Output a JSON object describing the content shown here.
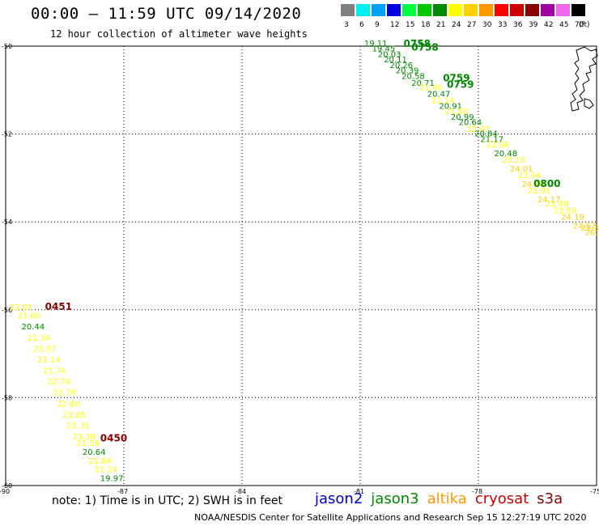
{
  "header": {
    "title": "00:00 – 11:59 UTC 09/14/2020",
    "subtitle": "12 hour collection of altimeter wave heights"
  },
  "scale": {
    "unit": "(ft)",
    "bins": [
      {
        "label": "3",
        "color": "#808080"
      },
      {
        "label": "6",
        "color": "#00f0f0"
      },
      {
        "label": "9",
        "color": "#00a0ff"
      },
      {
        "label": "12",
        "color": "#0000e0"
      },
      {
        "label": "15",
        "color": "#00ff40"
      },
      {
        "label": "18",
        "color": "#00c800"
      },
      {
        "label": "21",
        "color": "#008800"
      },
      {
        "label": "24",
        "color": "#ffff00"
      },
      {
        "label": "27",
        "color": "#ffd000"
      },
      {
        "label": "30",
        "color": "#ff9900"
      },
      {
        "label": "33",
        "color": "#ff0000"
      },
      {
        "label": "36",
        "color": "#cc0000"
      },
      {
        "label": "39",
        "color": "#880000"
      },
      {
        "label": "42",
        "color": "#a000a0"
      },
      {
        "label": "45",
        "color": "#ee66ee"
      },
      {
        "label": "70",
        "color": "#000000"
      }
    ]
  },
  "axes": {
    "lat_labels": [
      "-50",
      "-52",
      "-54",
      "-56",
      "-58",
      "-60"
    ],
    "lon_labels": [
      "-90",
      "-87",
      "-84",
      "-81",
      "-78",
      "-75"
    ]
  },
  "colors": {
    "low": "#008800",
    "mid": "#ffff00",
    "high": "#ffd000",
    "time": "#008800",
    "time_alt": "#880000"
  },
  "track_east": {
    "times": [
      {
        "label": "0758",
        "lon": -79.9,
        "lat": -50.02,
        "color": "#008800"
      },
      {
        "label": "0758",
        "lon": -79.7,
        "lat": -50.1,
        "color": "#008800"
      },
      {
        "label": "0759",
        "lon": -78.9,
        "lat": -50.8,
        "color": "#008800"
      },
      {
        "label": "0759",
        "lon": -78.8,
        "lat": -50.95,
        "color": "#008800"
      },
      {
        "label": "0800",
        "lon": -76.6,
        "lat": -53.2,
        "color": "#008800"
      }
    ],
    "readings": [
      {
        "label": "19.11",
        "lon": -80.9,
        "lat": -50.0,
        "color": "#008800"
      },
      {
        "label": "19.45",
        "lon": -80.7,
        "lat": -50.12,
        "color": "#008800"
      },
      {
        "label": "20.03",
        "lon": -80.55,
        "lat": -50.25,
        "color": "#008800"
      },
      {
        "label": "20.11",
        "lon": -80.4,
        "lat": -50.37,
        "color": "#008800"
      },
      {
        "label": "20.26",
        "lon": -80.25,
        "lat": -50.5,
        "color": "#008800"
      },
      {
        "label": "20.39",
        "lon": -80.1,
        "lat": -50.62,
        "color": "#008800"
      },
      {
        "label": "20.58",
        "lon": -79.95,
        "lat": -50.75,
        "color": "#008800"
      },
      {
        "label": "20.71",
        "lon": -79.7,
        "lat": -50.9,
        "color": "#008800"
      },
      {
        "label": "21.40",
        "lon": -79.5,
        "lat": -51.0,
        "color": "#ffff00"
      },
      {
        "label": "20.47",
        "lon": -79.3,
        "lat": -51.15,
        "color": "#008800"
      },
      {
        "label": "22.14",
        "lon": -79.2,
        "lat": -51.3,
        "color": "#ffff00"
      },
      {
        "label": "20.91",
        "lon": -79.0,
        "lat": -51.43,
        "color": "#008800"
      },
      {
        "label": "21.50",
        "lon": -78.85,
        "lat": -51.55,
        "color": "#ffff00"
      },
      {
        "label": "20.99",
        "lon": -78.7,
        "lat": -51.68,
        "color": "#008800"
      },
      {
        "label": "20.64",
        "lon": -78.5,
        "lat": -51.8,
        "color": "#008800"
      },
      {
        "label": "22.07",
        "lon": -78.3,
        "lat": -51.95,
        "color": "#ffff00"
      },
      {
        "label": "20.84",
        "lon": -78.1,
        "lat": -52.05,
        "color": "#008800"
      },
      {
        "label": "21.17",
        "lon": -77.95,
        "lat": -52.18,
        "color": "#008800"
      },
      {
        "label": "22.66",
        "lon": -77.8,
        "lat": -52.3,
        "color": "#ffff00"
      },
      {
        "label": "20.48",
        "lon": -77.6,
        "lat": -52.5,
        "color": "#008800"
      },
      {
        "label": "23.10",
        "lon": -77.4,
        "lat": -52.65,
        "color": "#ffff00"
      },
      {
        "label": "24.01",
        "lon": -77.2,
        "lat": -52.85,
        "color": "#ffd000"
      },
      {
        "label": "23.44",
        "lon": -77.0,
        "lat": -53.0,
        "color": "#ffff00"
      },
      {
        "label": "24.60",
        "lon": -76.9,
        "lat": -53.2,
        "color": "#ffd000"
      },
      {
        "label": "23.91",
        "lon": -76.75,
        "lat": -53.35,
        "color": "#ffff00"
      },
      {
        "label": "24.17",
        "lon": -76.5,
        "lat": -53.55,
        "color": "#ffd000"
      },
      {
        "label": "23.49",
        "lon": -76.3,
        "lat": -53.65,
        "color": "#ffff00"
      },
      {
        "label": "23.59",
        "lon": -76.1,
        "lat": -53.8,
        "color": "#ffff00"
      },
      {
        "label": "24.19",
        "lon": -75.9,
        "lat": -53.95,
        "color": "#ffd000"
      },
      {
        "label": "24.52",
        "lon": -75.6,
        "lat": -54.15,
        "color": "#ffd000"
      },
      {
        "label": "25.36",
        "lon": -75.4,
        "lat": -54.2,
        "color": "#ffd000"
      },
      {
        "label": "26.24",
        "lon": -75.3,
        "lat": -54.3,
        "color": "#ffd000"
      }
    ]
  },
  "track_west": {
    "times": [
      {
        "label": "0451",
        "lon": -89.0,
        "lat": -56.0,
        "color": "#880000"
      },
      {
        "label": "0450",
        "lon": -87.6,
        "lat": -59.0,
        "color": "#880000"
      }
    ],
    "readings": [
      {
        "label": "22.01",
        "lon": -89.9,
        "lat": -56.0,
        "color": "#ffff00"
      },
      {
        "label": "21.60",
        "lon": -89.7,
        "lat": -56.2,
        "color": "#ffff00"
      },
      {
        "label": "20.44",
        "lon": -89.6,
        "lat": -56.45,
        "color": "#008800"
      },
      {
        "label": "21.34",
        "lon": -89.45,
        "lat": -56.7,
        "color": "#ffff00"
      },
      {
        "label": "23.57",
        "lon": -89.3,
        "lat": -56.95,
        "color": "#ffff00"
      },
      {
        "label": "23.14",
        "lon": -89.2,
        "lat": -57.2,
        "color": "#ffff00"
      },
      {
        "label": "21.74",
        "lon": -89.05,
        "lat": -57.45,
        "color": "#ffff00"
      },
      {
        "label": "22.74",
        "lon": -88.95,
        "lat": -57.7,
        "color": "#ffff00"
      },
      {
        "label": "22.79",
        "lon": -88.8,
        "lat": -57.95,
        "color": "#ffff00"
      },
      {
        "label": "22.80",
        "lon": -88.7,
        "lat": -58.2,
        "color": "#ffff00"
      },
      {
        "label": "22.85",
        "lon": -88.55,
        "lat": -58.45,
        "color": "#ffff00"
      },
      {
        "label": "22.31",
        "lon": -88.45,
        "lat": -58.7,
        "color": "#ffff00"
      },
      {
        "label": "23.38",
        "lon": -88.3,
        "lat": -58.95,
        "color": "#ffff00"
      },
      {
        "label": "21.56",
        "lon": -88.2,
        "lat": -59.1,
        "color": "#ffff00"
      },
      {
        "label": "20.64",
        "lon": -88.05,
        "lat": -59.3,
        "color": "#008800"
      },
      {
        "label": "21.84",
        "lon": -87.9,
        "lat": -59.5,
        "color": "#ffff00"
      },
      {
        "label": "21.24",
        "lon": -87.75,
        "lat": -59.7,
        "color": "#ffff00"
      },
      {
        "label": "19.97",
        "lon": -87.6,
        "lat": -59.9,
        "color": "#008800"
      }
    ]
  },
  "note": "note:  1) Time is in UTC;  2) SWH is in feet",
  "satellites": [
    {
      "name": "jason2",
      "color": "#0000cc"
    },
    {
      "name": "jason3",
      "color": "#008800"
    },
    {
      "name": "altika",
      "color": "#ff9900"
    },
    {
      "name": "cryosat",
      "color": "#cc0000"
    },
    {
      "name": "s3a",
      "color": "#880000"
    }
  ],
  "footer": "NOAA/NESDIS Center for Satellite Applications and Research    Sep 15 12:27:19 UTC 2020"
}
